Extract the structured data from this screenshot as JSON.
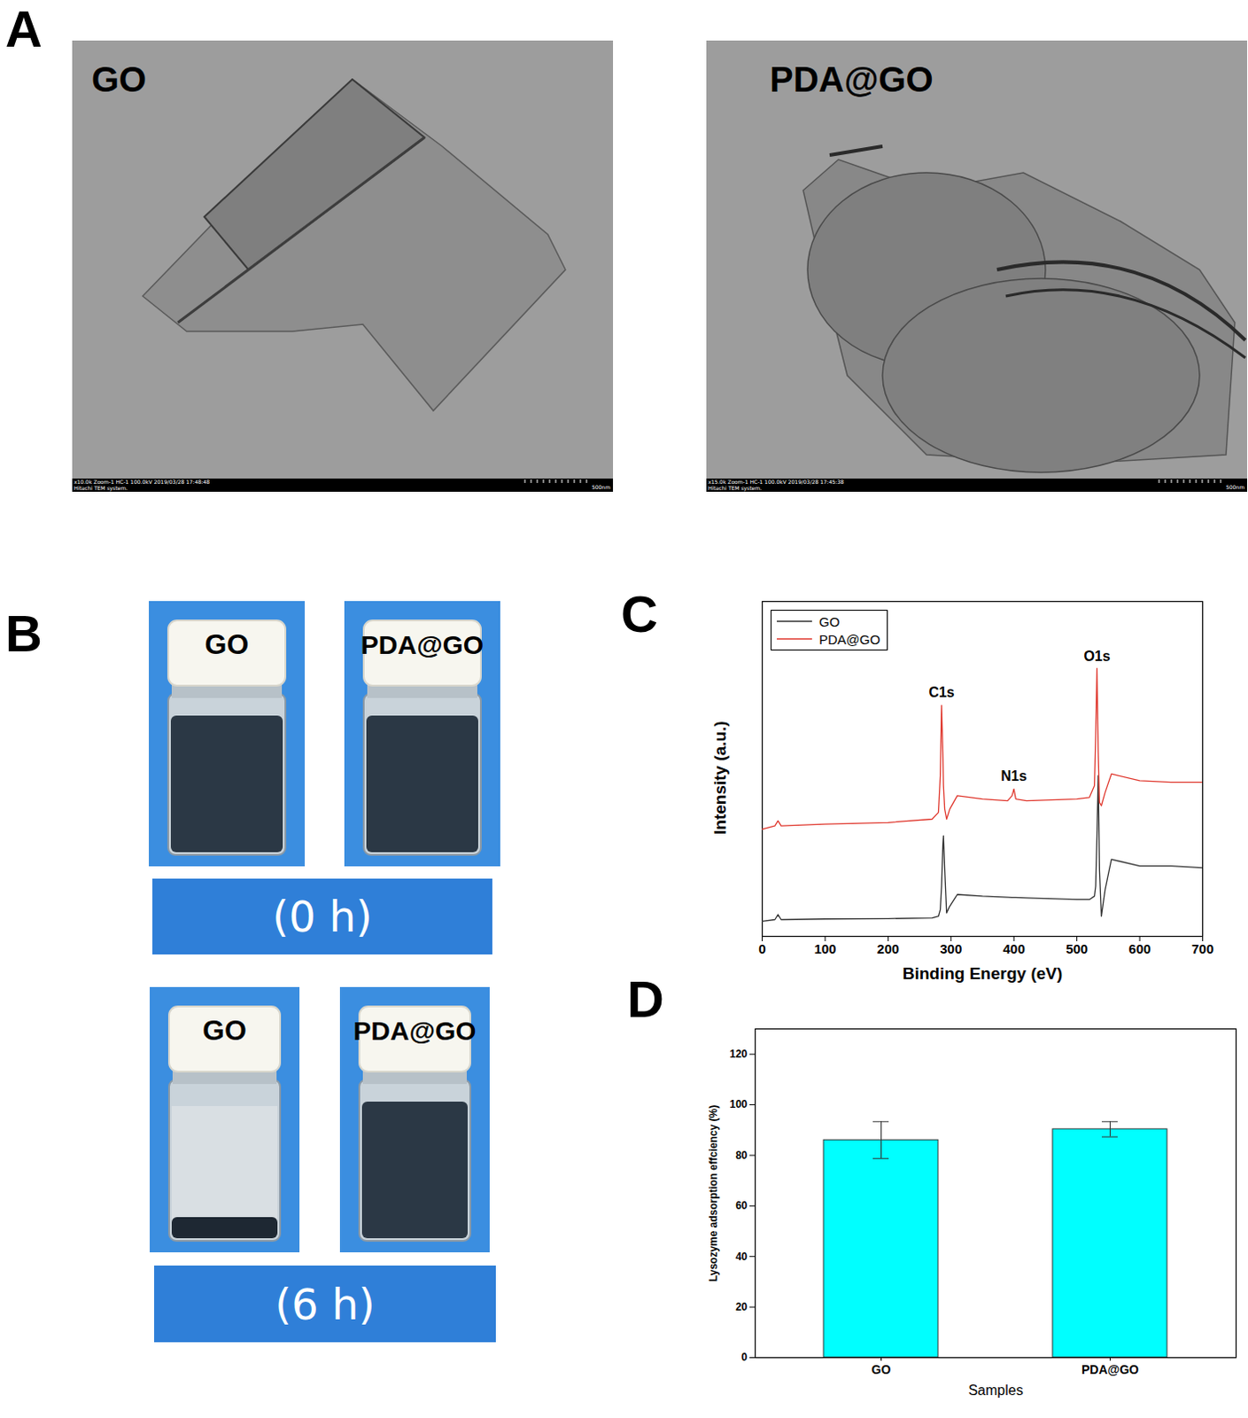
{
  "panel_labels": [
    "A",
    "B",
    "C",
    "D"
  ],
  "tem_images": [
    {
      "label": "GO",
      "info": "x10.0k Zoom-1 HC-1 100.0kV 2019/03/28 17:48:48",
      "system": "Hitachi TEM system.",
      "scale_bar": "500nm"
    },
    {
      "label": "PDA@GO",
      "info": "x15.0k Zoom-1 HC-1 100.0kV 2019/03/28 17:45:38",
      "system": "Hitachi TEM system.",
      "scale_bar": "500nm"
    }
  ],
  "vial_photos": [
    {
      "time": "(0 h)",
      "vials": [
        "GO",
        "PDA@GO"
      ]
    },
    {
      "time": "(6 h)",
      "vials": [
        "GO",
        "PDA@GO"
      ]
    }
  ],
  "chart_data": [
    {
      "type": "line",
      "x_label": "Binding Energy (eV)",
      "y_label": "Intensity (a.u.)",
      "xlim": [
        0,
        700
      ],
      "xticks": [
        0,
        100,
        200,
        300,
        400,
        500,
        600,
        700
      ],
      "ylim": [
        0,
        100
      ],
      "tick_labels": "x",
      "legend": "upper left",
      "x": [
        0,
        20,
        25,
        30,
        100,
        200,
        270,
        280,
        283,
        285,
        287,
        288,
        290,
        293,
        298,
        310,
        350,
        390,
        397,
        400,
        403,
        420,
        500,
        520,
        528,
        530,
        532,
        534,
        536,
        539,
        545,
        555,
        600,
        650,
        700
      ],
      "series": [
        {
          "name": "GO",
          "color": "#333333",
          "values": [
            4.5,
            5,
            6.5,
            5,
            5.2,
            5.3,
            5.5,
            6,
            8,
            15,
            27,
            30,
            20,
            7,
            9,
            12.5,
            12,
            11.7,
            11.6,
            11.6,
            11.6,
            11.5,
            11,
            11,
            12,
            15,
            30,
            48,
            20,
            6,
            14,
            23,
            21,
            21,
            20.5
          ]
        },
        {
          "name": "PDA@GO",
          "color": "#e03a30",
          "values": [
            32,
            33,
            34.5,
            33,
            33.5,
            34,
            35,
            37,
            48,
            69,
            55,
            45,
            38,
            35,
            38,
            42,
            41,
            40.5,
            42,
            44,
            41,
            40.5,
            41,
            41.5,
            45,
            60,
            80,
            55,
            40,
            39,
            43,
            48.5,
            46.5,
            46,
            46
          ]
        }
      ],
      "annotations": [
        {
          "text": "C1s",
          "x": 285
        },
        {
          "text": "N1s",
          "x": 400
        },
        {
          "text": "O1s",
          "x": 532
        }
      ]
    },
    {
      "type": "bar",
      "x_label": "Samples",
      "y_label": "Lysozyme adsorption effciency (%)",
      "categories": [
        "GO",
        "PDA@GO"
      ],
      "values": [
        86,
        90.3
      ],
      "errors": [
        7.3,
        3
      ],
      "color": "#00ffff",
      "ylim": [
        0,
        130
      ],
      "yticks": [
        0,
        20,
        40,
        60,
        80,
        100,
        120
      ]
    }
  ]
}
